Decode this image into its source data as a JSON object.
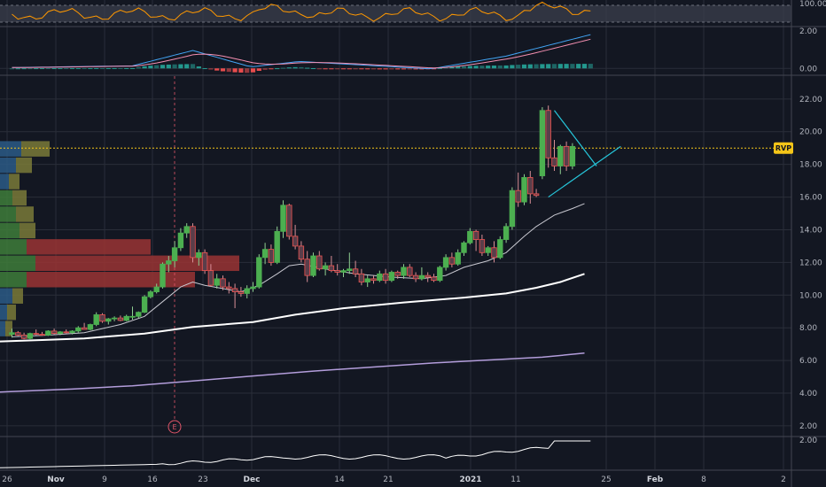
{
  "chart_data": {
    "type": "candlestick",
    "x_tick_labels": [
      "26",
      "Nov",
      "9",
      "16",
      "23",
      "Dec",
      "14",
      "21",
      "2021",
      "11",
      "25",
      "Feb",
      "8",
      "2"
    ],
    "price_axis_ticks": [
      2,
      4,
      6,
      8,
      10,
      12,
      14,
      16,
      18,
      20,
      22
    ],
    "price_axis_labels": [
      "2.00",
      "4.00",
      "6.00",
      "8.00",
      "10.00",
      "12.00",
      "14.00",
      "16.00",
      "18.00",
      "20.00",
      "22.00"
    ],
    "ylim": [
      1.4,
      23.4
    ],
    "rsi_panel": {
      "labels": [
        "100.00"
      ],
      "range": [
        0,
        100
      ]
    },
    "macd_panel": {
      "labels": [
        "2.00",
        "0.00"
      ],
      "range": [
        -0.35,
        2.4
      ]
    },
    "lower_panel": {
      "labels": [
        "2.00"
      ]
    },
    "rvp_label": "RVP",
    "rvp_price": 19.0,
    "event_marker": {
      "label": "E",
      "bar_index": 24
    },
    "candles": [
      [
        7.6,
        7.95,
        7.4,
        7.7
      ],
      [
        7.7,
        7.8,
        7.5,
        7.55
      ],
      [
        7.55,
        7.7,
        7.3,
        7.35
      ],
      [
        7.35,
        7.7,
        7.3,
        7.65
      ],
      [
        7.65,
        7.9,
        7.55,
        7.6
      ],
      [
        7.6,
        7.75,
        7.5,
        7.55
      ],
      [
        7.55,
        7.85,
        7.5,
        7.8
      ],
      [
        7.8,
        7.95,
        7.6,
        7.65
      ],
      [
        7.65,
        7.8,
        7.55,
        7.75
      ],
      [
        7.75,
        7.9,
        7.65,
        7.7
      ],
      [
        7.7,
        7.85,
        7.6,
        7.8
      ],
      [
        7.8,
        8.1,
        7.7,
        8.0
      ],
      [
        8.0,
        8.3,
        7.9,
        7.9
      ],
      [
        7.9,
        8.25,
        7.85,
        8.2
      ],
      [
        8.2,
        8.95,
        8.1,
        8.8
      ],
      [
        8.8,
        8.9,
        8.3,
        8.4
      ],
      [
        8.4,
        8.6,
        8.2,
        8.55
      ],
      [
        8.55,
        8.7,
        8.4,
        8.6
      ],
      [
        8.6,
        8.75,
        8.4,
        8.45
      ],
      [
        8.45,
        8.8,
        8.4,
        8.7
      ],
      [
        8.7,
        9.3,
        8.5,
        8.7
      ],
      [
        8.7,
        9.0,
        8.6,
        8.95
      ],
      [
        8.95,
        10.0,
        8.9,
        9.9
      ],
      [
        9.9,
        10.3,
        9.8,
        10.2
      ],
      [
        10.2,
        10.7,
        10.1,
        10.5
      ],
      [
        10.5,
        12.0,
        10.4,
        11.9
      ],
      [
        11.9,
        12.4,
        11.4,
        12.1
      ],
      [
        12.1,
        13.3,
        11.7,
        12.9
      ],
      [
        12.9,
        14.1,
        12.7,
        13.8
      ],
      [
        13.8,
        14.4,
        13.5,
        14.2
      ],
      [
        14.2,
        14.4,
        12.0,
        12.3
      ],
      [
        12.3,
        12.8,
        11.8,
        12.6
      ],
      [
        12.6,
        12.8,
        11.3,
        11.5
      ],
      [
        11.5,
        11.9,
        10.5,
        10.6
      ],
      [
        10.6,
        11.3,
        10.4,
        11.0
      ],
      [
        11.0,
        11.2,
        10.3,
        10.5
      ],
      [
        10.5,
        10.8,
        10.1,
        10.4
      ],
      [
        10.4,
        10.7,
        9.2,
        10.2
      ],
      [
        10.2,
        10.5,
        9.9,
        10.1
      ],
      [
        10.1,
        10.6,
        9.8,
        10.4
      ],
      [
        10.4,
        10.8,
        10.2,
        10.5
      ],
      [
        10.5,
        12.5,
        10.4,
        12.3
      ],
      [
        12.3,
        13.2,
        11.9,
        12.8
      ],
      [
        12.8,
        13.1,
        11.8,
        12.0
      ],
      [
        12.0,
        14.2,
        11.9,
        13.9
      ],
      [
        13.9,
        15.8,
        13.5,
        15.5
      ],
      [
        15.5,
        15.6,
        13.4,
        13.6
      ],
      [
        13.6,
        14.3,
        12.8,
        13.0
      ],
      [
        13.0,
        13.3,
        12.0,
        12.2
      ],
      [
        12.2,
        12.7,
        10.8,
        11.2
      ],
      [
        11.2,
        12.6,
        11.1,
        12.4
      ],
      [
        12.4,
        12.7,
        11.5,
        11.6
      ],
      [
        11.6,
        12.0,
        11.2,
        11.8
      ],
      [
        11.8,
        12.4,
        11.4,
        11.5
      ],
      [
        11.5,
        11.9,
        11.2,
        11.4
      ],
      [
        11.4,
        11.6,
        11.1,
        11.5
      ],
      [
        11.5,
        12.6,
        11.3,
        11.6
      ],
      [
        11.6,
        12.1,
        11.1,
        11.3
      ],
      [
        11.3,
        11.6,
        10.6,
        10.8
      ],
      [
        10.8,
        11.2,
        10.5,
        11.0
      ],
      [
        11.0,
        11.2,
        10.7,
        10.9
      ],
      [
        10.9,
        11.5,
        10.8,
        11.3
      ],
      [
        11.3,
        11.6,
        10.7,
        10.9
      ],
      [
        10.9,
        11.5,
        10.8,
        11.4
      ],
      [
        11.4,
        11.5,
        11.0,
        11.2
      ],
      [
        11.2,
        11.9,
        11.0,
        11.7
      ],
      [
        11.7,
        11.9,
        11.1,
        11.2
      ],
      [
        11.2,
        11.4,
        10.8,
        11.0
      ],
      [
        11.0,
        11.7,
        10.9,
        11.2
      ],
      [
        11.2,
        11.4,
        10.8,
        11.1
      ],
      [
        11.1,
        11.3,
        10.8,
        10.9
      ],
      [
        10.9,
        11.8,
        10.8,
        11.7
      ],
      [
        11.7,
        12.5,
        11.5,
        12.3
      ],
      [
        12.3,
        12.6,
        11.7,
        11.9
      ],
      [
        11.9,
        12.8,
        11.8,
        12.6
      ],
      [
        12.6,
        13.3,
        12.4,
        13.2
      ],
      [
        13.2,
        14.1,
        13.1,
        13.9
      ],
      [
        13.9,
        14.0,
        12.7,
        13.4
      ],
      [
        13.4,
        13.7,
        12.4,
        12.6
      ],
      [
        12.6,
        13.0,
        12.4,
        12.9
      ],
      [
        12.9,
        13.3,
        12.0,
        12.3
      ],
      [
        12.3,
        13.6,
        12.2,
        13.4
      ],
      [
        13.4,
        14.4,
        13.2,
        14.2
      ],
      [
        14.2,
        16.6,
        14.0,
        16.4
      ],
      [
        16.4,
        17.5,
        15.4,
        15.7
      ],
      [
        15.7,
        17.4,
        15.5,
        17.2
      ],
      [
        17.2,
        17.6,
        15.6,
        16.2
      ],
      [
        16.2,
        16.5,
        16.0,
        16.1
      ],
      [
        17.3,
        21.5,
        17.1,
        21.3
      ],
      [
        21.3,
        21.6,
        17.8,
        18.4
      ],
      [
        18.4,
        19.5,
        17.6,
        17.9
      ],
      [
        17.9,
        19.2,
        17.4,
        19.1
      ],
      [
        19.1,
        19.4,
        17.6,
        17.9
      ],
      [
        17.9,
        19.3,
        17.7,
        19.1
      ]
    ],
    "overlays": [
      {
        "color": "#c8c8d0",
        "width": 1,
        "values": [
          [
            0,
            7.45
          ],
          [
            6,
            7.55
          ],
          [
            12,
            7.7
          ],
          [
            18,
            8.2
          ],
          [
            22,
            8.7
          ],
          [
            25,
            9.6
          ],
          [
            28,
            10.5
          ],
          [
            30,
            10.8
          ],
          [
            32,
            10.6
          ],
          [
            35,
            10.4
          ],
          [
            38,
            10.2
          ],
          [
            41,
            10.6
          ],
          [
            44,
            11.3
          ],
          [
            46,
            11.8
          ],
          [
            48,
            11.9
          ],
          [
            52,
            11.6
          ],
          [
            57,
            11.3
          ],
          [
            63,
            11.1
          ],
          [
            68,
            11.0
          ],
          [
            72,
            11.2
          ],
          [
            75,
            11.7
          ],
          [
            79,
            12.1
          ],
          [
            82,
            12.6
          ],
          [
            85,
            13.6
          ],
          [
            87,
            14.2
          ],
          [
            90,
            14.9
          ],
          [
            93,
            15.3
          ],
          [
            95,
            15.6
          ]
        ]
      },
      {
        "color": "#ffffff",
        "width": 2,
        "values": [
          [
            -3,
            7.15
          ],
          [
            5,
            7.25
          ],
          [
            12,
            7.35
          ],
          [
            22,
            7.65
          ],
          [
            30,
            8.05
          ],
          [
            40,
            8.35
          ],
          [
            47,
            8.8
          ],
          [
            55,
            9.2
          ],
          [
            65,
            9.55
          ],
          [
            75,
            9.85
          ],
          [
            82,
            10.1
          ],
          [
            87,
            10.45
          ],
          [
            91,
            10.8
          ],
          [
            95,
            11.3
          ]
        ]
      },
      {
        "color": "#b39ddb",
        "width": 1.5,
        "values": [
          [
            -3,
            4.05
          ],
          [
            10,
            4.25
          ],
          [
            20,
            4.45
          ],
          [
            30,
            4.75
          ],
          [
            40,
            5.05
          ],
          [
            50,
            5.35
          ],
          [
            60,
            5.6
          ],
          [
            70,
            5.85
          ],
          [
            80,
            6.05
          ],
          [
            88,
            6.2
          ],
          [
            95,
            6.45
          ]
        ]
      }
    ],
    "triangle": [
      {
        "from": [
          90,
          21.3
        ],
        "to": [
          97,
          17.9
        ]
      },
      {
        "from": [
          89,
          16.0
        ],
        "to": [
          101,
          19.1
        ]
      }
    ],
    "volume_profile": [
      {
        "low": 18.45,
        "high": 19.45,
        "blue": 24,
        "yellow": 32
      },
      {
        "low": 17.45,
        "high": 18.45,
        "blue": 18,
        "yellow": 18
      },
      {
        "low": 16.45,
        "high": 17.45,
        "blue": 10,
        "yellow": 12
      },
      {
        "low": 15.45,
        "high": 16.45,
        "green": 14,
        "yellow": 16
      },
      {
        "low": 14.45,
        "high": 15.45,
        "green": 18,
        "yellow": 20
      },
      {
        "low": 13.45,
        "high": 14.45,
        "green": 22,
        "yellow": 18
      },
      {
        "low": 12.45,
        "high": 13.45,
        "green": 30,
        "red": 140
      },
      {
        "low": 11.45,
        "high": 12.45,
        "green": 40,
        "red": 230
      },
      {
        "low": 10.45,
        "high": 11.45,
        "green": 30,
        "red": 190
      },
      {
        "low": 9.45,
        "high": 10.45,
        "blue": 14,
        "yellow": 12
      },
      {
        "low": 8.45,
        "high": 9.45,
        "blue": 8,
        "yellow": 10
      },
      {
        "low": 7.45,
        "high": 8.45,
        "blue": 6,
        "yellow": 8
      }
    ]
  },
  "colors": {
    "background": "#131722",
    "grid": "#2a2e39",
    "panel_border": "#434651",
    "up": "#4caf50",
    "down": "#ef5350",
    "rvp": "#f5c518",
    "triangle": "#26c6da",
    "event": "#e05569",
    "rsi_line": "#ff9800",
    "macd_line": "#42a5f5",
    "signal_line": "#f48fb1",
    "hist_up": "#26a69a",
    "hist_down": "#ff5252",
    "lower_line": "#ffffff"
  }
}
